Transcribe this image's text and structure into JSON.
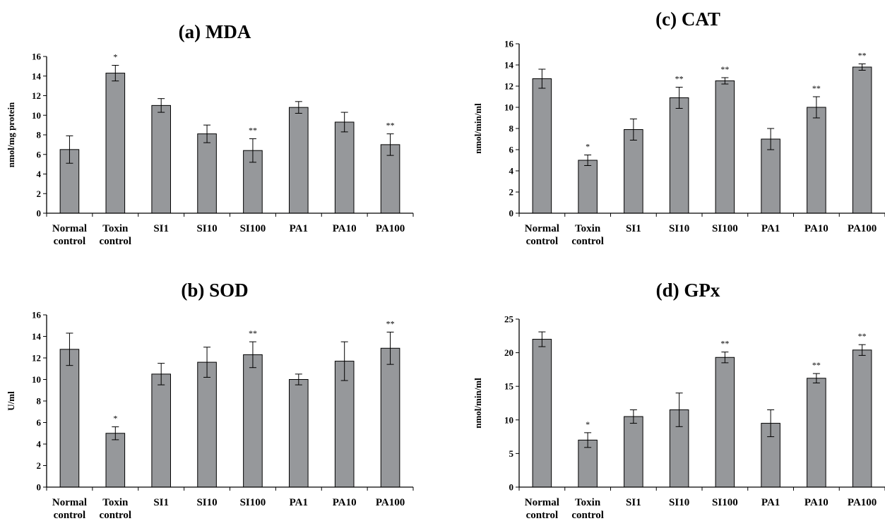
{
  "chart_data": [
    {
      "type": "bar",
      "title": "(a) MDA",
      "ylabel": "nmol/mg protein",
      "ylim": [
        0,
        16
      ],
      "yticks": [
        0,
        2,
        4,
        6,
        8,
        10,
        12,
        14,
        16
      ],
      "categories": [
        [
          "Normal",
          "control"
        ],
        [
          "Toxin",
          "control"
        ],
        [
          "SI1"
        ],
        [
          "SI10"
        ],
        [
          "SI100"
        ],
        [
          "PA1"
        ],
        [
          "PA10"
        ],
        [
          "PA100"
        ]
      ],
      "values": [
        6.5,
        14.3,
        11.0,
        8.1,
        6.4,
        10.8,
        9.3,
        7.0
      ],
      "errors": [
        1.4,
        0.8,
        0.7,
        0.9,
        1.2,
        0.6,
        1.0,
        1.1
      ],
      "significance": [
        "",
        "*",
        "",
        "",
        "**",
        "",
        "",
        "**"
      ]
    },
    {
      "type": "bar",
      "title": "(c) CAT",
      "ylabel": "nmol/min/ml",
      "ylim": [
        0,
        16
      ],
      "yticks": [
        0,
        2,
        4,
        6,
        8,
        10,
        12,
        14,
        16
      ],
      "categories": [
        [
          "Normal",
          "control"
        ],
        [
          "Toxin",
          "control"
        ],
        [
          "SI1"
        ],
        [
          "SI10"
        ],
        [
          "SI100"
        ],
        [
          "PA1"
        ],
        [
          "PA10"
        ],
        [
          "PA100"
        ]
      ],
      "values": [
        12.7,
        5.0,
        7.9,
        10.9,
        12.5,
        7.0,
        10.0,
        13.8
      ],
      "errors": [
        0.9,
        0.5,
        1.0,
        1.0,
        0.3,
        1.0,
        1.0,
        0.3
      ],
      "significance": [
        "",
        "*",
        "",
        "**",
        "**",
        "",
        "**",
        "**"
      ]
    },
    {
      "type": "bar",
      "title": "(b) SOD",
      "ylabel": "U/ml",
      "ylim": [
        0,
        16
      ],
      "yticks": [
        0,
        2,
        4,
        6,
        8,
        10,
        12,
        14,
        16
      ],
      "categories": [
        [
          "Normal",
          "control"
        ],
        [
          "Toxin",
          "control"
        ],
        [
          "SI1"
        ],
        [
          "SI10"
        ],
        [
          "SI100"
        ],
        [
          "PA1"
        ],
        [
          "PA10"
        ],
        [
          "PA100"
        ]
      ],
      "values": [
        12.8,
        5.0,
        10.5,
        11.6,
        12.3,
        10.0,
        11.7,
        12.9
      ],
      "errors": [
        1.5,
        0.6,
        1.0,
        1.4,
        1.2,
        0.5,
        1.8,
        1.5
      ],
      "significance": [
        "",
        "*",
        "",
        "",
        "**",
        "",
        "",
        "**"
      ]
    },
    {
      "type": "bar",
      "title": "(d) GPx",
      "ylabel": "nmol/min/ml",
      "ylim": [
        0,
        25
      ],
      "yticks": [
        0,
        5,
        10,
        15,
        20,
        25
      ],
      "categories": [
        [
          "Normal",
          "control"
        ],
        [
          "Toxin",
          "control"
        ],
        [
          "SI1"
        ],
        [
          "SI10"
        ],
        [
          "SI100"
        ],
        [
          "PA1"
        ],
        [
          "PA10"
        ],
        [
          "PA100"
        ]
      ],
      "values": [
        22.0,
        7.0,
        10.5,
        11.5,
        19.3,
        9.5,
        16.2,
        20.4
      ],
      "errors": [
        1.1,
        1.1,
        1.0,
        2.5,
        0.8,
        2.0,
        0.7,
        0.8
      ],
      "significance": [
        "",
        "*",
        "",
        "",
        "**",
        "",
        "**",
        "**"
      ]
    }
  ],
  "colors": {
    "bar": "#96989b",
    "stroke": "#000000"
  }
}
